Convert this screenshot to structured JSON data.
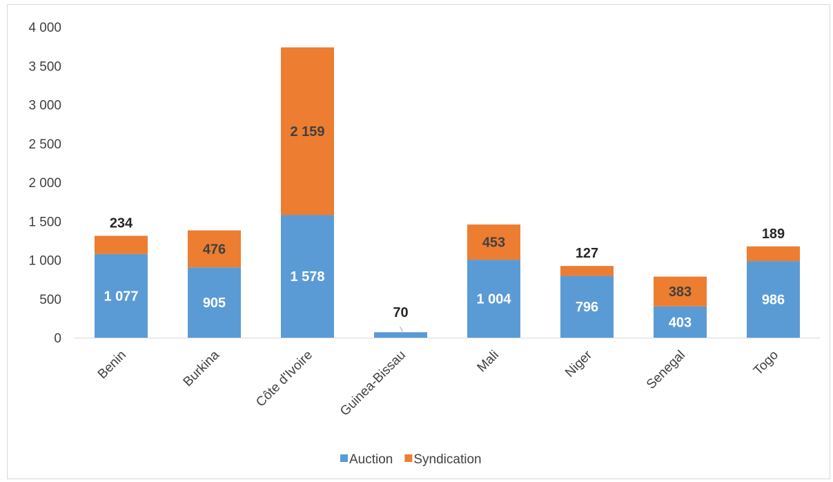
{
  "chart_data": {
    "type": "bar",
    "stacked": true,
    "categories": [
      "Benin",
      "Burkina",
      "Côte d'Ivoire",
      "Guinea-Bissau",
      "Mali",
      "Niger",
      "Senegal",
      "Togo"
    ],
    "series": [
      {
        "name": "Auction",
        "color": "#5b9bd5",
        "values": [
          1077,
          905,
          1578,
          70,
          1004,
          796,
          403,
          986
        ],
        "labels": [
          "1 077",
          "905",
          "1 578",
          "70",
          "1 004",
          "796",
          "403",
          "986"
        ]
      },
      {
        "name": "Syndication",
        "color": "#ed7d31",
        "values": [
          234,
          476,
          2159,
          0,
          453,
          127,
          383,
          189
        ],
        "labels": [
          "234",
          "476",
          "2 159",
          "",
          "453",
          "127",
          "383",
          "189"
        ]
      }
    ],
    "y_ticks": [
      "0",
      "500",
      "1 000",
      "1 500",
      "2 000",
      "2 500",
      "3 000",
      "3 500",
      "4 000"
    ],
    "ylim": [
      0,
      4000
    ],
    "grid": false,
    "legend_position": "bottom",
    "title": "",
    "xlabel": "",
    "ylabel": ""
  }
}
